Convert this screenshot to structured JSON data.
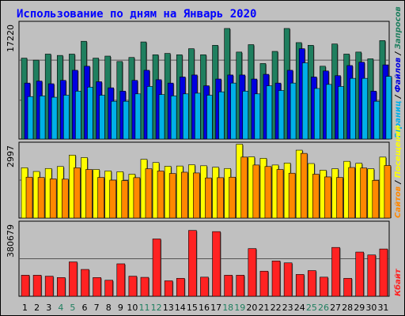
{
  "chart_data": {
    "type": "bar",
    "title": "Использование по дням на Январь 2020",
    "categories": [
      "1",
      "2",
      "3",
      "4",
      "5",
      "6",
      "7",
      "8",
      "9",
      "10",
      "11",
      "12",
      "13",
      "14",
      "15",
      "16",
      "17",
      "18",
      "19",
      "20",
      "21",
      "22",
      "23",
      "24",
      "25",
      "26",
      "27",
      "28",
      "29",
      "30",
      "31"
    ],
    "weekend_days": [
      "4",
      "5",
      "11",
      "12",
      "18",
      "19",
      "25",
      "26"
    ],
    "panels": [
      {
        "max_label": "17220",
        "ylim": [
          0,
          17220
        ],
        "series": [
          {
            "name": "Запросов",
            "color": "#1f7f5f",
            "values": [
              12000,
              11700,
              12600,
              12400,
              12600,
              14500,
              12000,
              12300,
              11500,
              12100,
              14400,
              12500,
              12700,
              12500,
              13400,
              12500,
              13900,
              16400,
              12900,
              14000,
              11200,
              13000,
              16400,
              14300,
              13900,
              10800,
              14100,
              12600,
              12900,
              11900,
              14600
            ]
          },
          {
            "name": "Файлов",
            "color": "#0000e0",
            "values": [
              8300,
              8600,
              8200,
              8700,
              10200,
              10800,
              8500,
              7600,
              7100,
              8700,
              10200,
              8800,
              8300,
              9200,
              9500,
              7900,
              8900,
              9500,
              9500,
              8900,
              9600,
              8300,
              10200,
              13400,
              9200,
              10100,
              9400,
              10900,
              11400,
              7100,
              11000
            ]
          },
          {
            "name": "Страниц",
            "color": "#00b0e8",
            "values": [
              6300,
              6400,
              6200,
              6500,
              7100,
              7700,
              6500,
              5600,
              5600,
              6700,
              7800,
              6600,
              6400,
              6700,
              6800,
              6500,
              7000,
              8300,
              7100,
              6700,
              7900,
              7200,
              8300,
              11300,
              7500,
              8100,
              7800,
              9000,
              9000,
              5600,
              9300
            ]
          }
        ]
      },
      {
        "max_label": "2997",
        "ylim": [
          0,
          2997
        ],
        "series": [
          {
            "name": "Посещений",
            "color": "#ffff00",
            "values": [
              2030,
              1880,
              2000,
              2080,
              2540,
              2440,
              1960,
              1900,
              1870,
              1770,
              2370,
              2240,
              2090,
              2100,
              2150,
              2110,
              2050,
              2000,
              2980,
              2470,
              2410,
              2140,
              2220,
              2740,
              2200,
              1930,
              1990,
              2290,
              2210,
              1990,
              2460
            ]
          },
          {
            "name": "Сайтов",
            "color": "#ff8800",
            "values": [
              1650,
              1640,
              1580,
              1570,
              2030,
              1960,
              1640,
              1530,
              1510,
              1630,
              1990,
              1900,
              1800,
              1850,
              1820,
              1620,
              1630,
              1650,
              2460,
              2140,
              2080,
              1960,
              1810,
              2610,
              1770,
              1660,
              1640,
              2040,
              2020,
              1520,
              2120
            ]
          }
        ]
      },
      {
        "max_label": "380679",
        "ylim": [
          0,
          380679
        ],
        "series": [
          {
            "name": "Кбайт",
            "color": "#ff2222",
            "values": [
              109000,
              109000,
              104000,
              97000,
              178000,
              139000,
              97000,
              83000,
              168000,
              104000,
              98000,
              297000,
              80000,
              93000,
              341000,
              99000,
              335000,
              109000,
              109000,
              247000,
              130000,
              183000,
              173000,
              113000,
              133000,
              99000,
              253000,
              93000,
              229000,
              214000,
              245000
            ]
          }
        ]
      }
    ]
  }
}
